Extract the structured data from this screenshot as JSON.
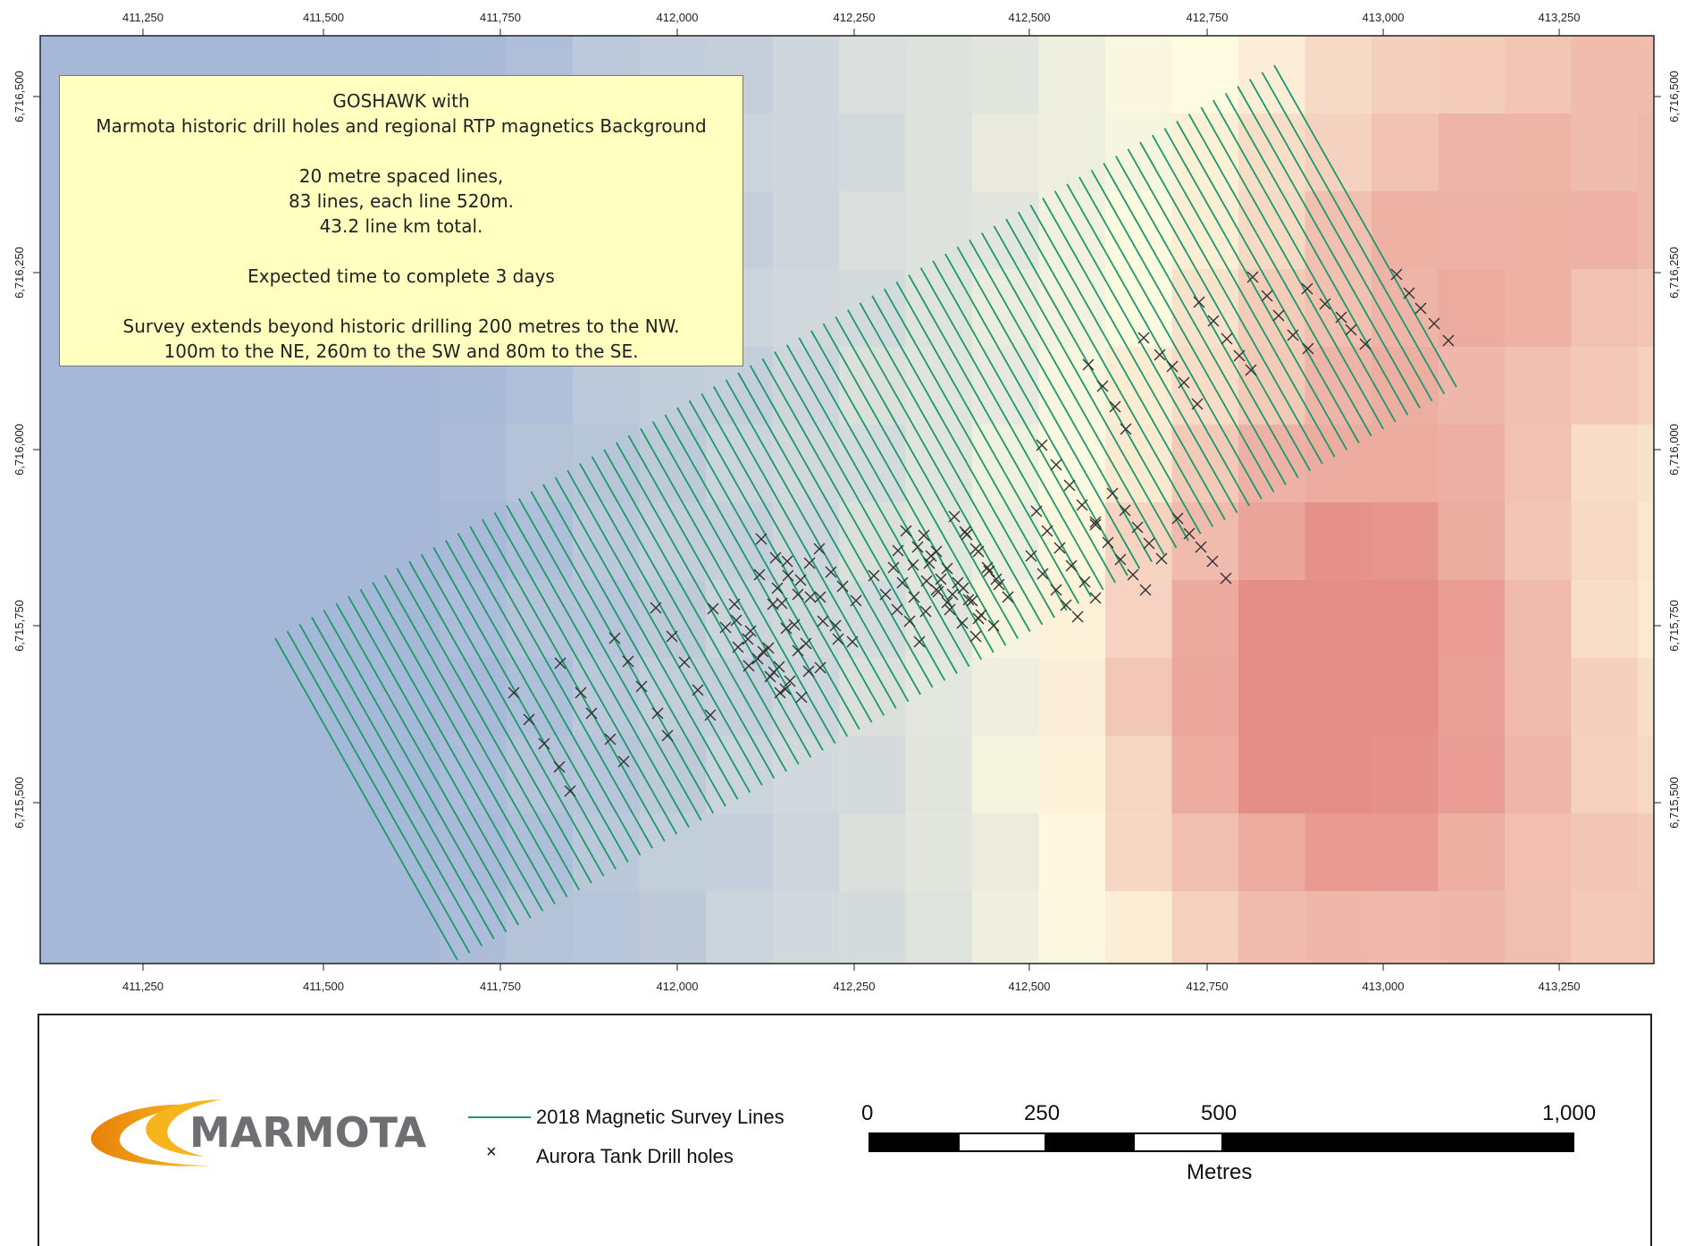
{
  "map": {
    "x_ticks": [
      "411,250",
      "411,500",
      "411,750",
      "412,000",
      "412,250",
      "412,500",
      "412,750",
      "413,000",
      "413,250"
    ],
    "y_ticks": [
      "6,716,500",
      "6,716,250",
      "6,716,000",
      "6,715,750",
      "6,715,500"
    ],
    "colors": {
      "survey_line": "#1a9a6c",
      "drill_hole": "#333333",
      "mag_low": "#a6b8d8",
      "mag_mid": "#fffbe0",
      "mag_high": "#e58e88"
    },
    "survey_line_count": 83,
    "drill_hole_count": 130
  },
  "info_box": {
    "lines": [
      "GOSHAWK with",
      "Marmota historic drill holes and regional RTP magnetics Background",
      "",
      "20 metre spaced lines,",
      "83 lines, each line 520m.",
      "43.2 line km total.",
      "",
      "Expected time to complete 3 days",
      "",
      "Survey extends beyond historic drilling 200 metres to the NW.",
      "100m to the NE, 260m to the SW and 80m to the SE."
    ]
  },
  "legend": {
    "logo_text": "MARMOTA",
    "items": [
      {
        "symbol": "line-icon",
        "label": "2018 Magnetic Survey Lines"
      },
      {
        "symbol": "x-icon",
        "label": "Aurora Tank Drill holes"
      }
    ],
    "x_symbol": "×"
  },
  "scale_bar": {
    "labels": [
      "0",
      "250",
      "500",
      "1,000"
    ],
    "unit": "Metres"
  }
}
